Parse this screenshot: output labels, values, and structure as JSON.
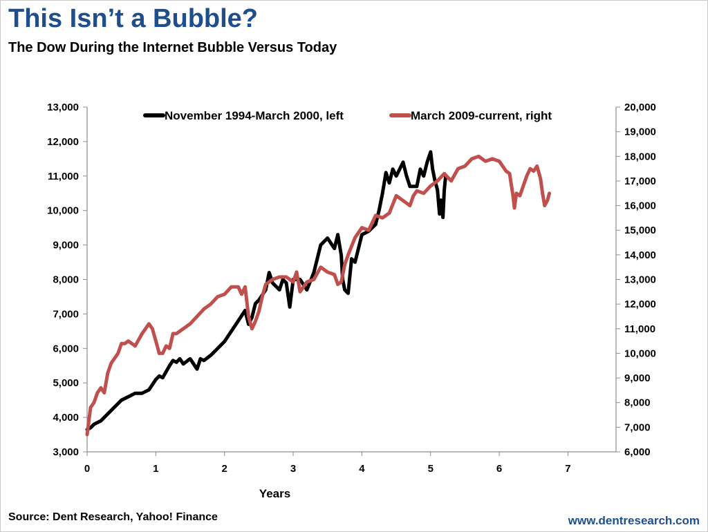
{
  "title": "This Isn’t a Bubble?",
  "subtitle": "The Dow During the Internet Bubble Versus Today",
  "source": "Source: Dent Research, Yahoo! Finance",
  "website": "www.dentresearch.com",
  "colors": {
    "title": "#1f4e8c",
    "series_left": "#000000",
    "series_right": "#c0504d",
    "website": "#1f4e8c"
  },
  "chart_data": {
    "type": "line",
    "title": "",
    "xlabel": "Years",
    "ylabel_left": "",
    "ylabel_right": "",
    "xlim": [
      0,
      7.7
    ],
    "ylim_left": [
      3000,
      13000
    ],
    "ylim_right": [
      6000,
      20000
    ],
    "x_ticks": [
      "0",
      "1",
      "2",
      "3",
      "4",
      "5",
      "6",
      "7"
    ],
    "y_ticks_left": [
      "3,000",
      "4,000",
      "5,000",
      "6,000",
      "7,000",
      "8,000",
      "9,000",
      "10,000",
      "11,000",
      "12,000",
      "13,000"
    ],
    "y_ticks_right": [
      "6,000",
      "7,000",
      "8,000",
      "9,000",
      "10,000",
      "11,000",
      "12,000",
      "13,000",
      "14,000",
      "15,000",
      "16,000",
      "17,000",
      "18,000",
      "19,000",
      "20,000"
    ],
    "grid": false,
    "legend_position": "top",
    "series": [
      {
        "name": "November 1994-March 2000, left",
        "axis": "left",
        "color": "#000000",
        "x": [
          0,
          0.05,
          0.1,
          0.2,
          0.3,
          0.4,
          0.5,
          0.6,
          0.7,
          0.8,
          0.9,
          1.0,
          1.05,
          1.1,
          1.2,
          1.25,
          1.3,
          1.35,
          1.4,
          1.5,
          1.6,
          1.65,
          1.7,
          1.8,
          1.9,
          2.0,
          2.1,
          2.2,
          2.3,
          2.35,
          2.4,
          2.45,
          2.5,
          2.6,
          2.65,
          2.7,
          2.8,
          2.85,
          2.9,
          2.95,
          3.0,
          3.1,
          3.2,
          3.3,
          3.4,
          3.5,
          3.6,
          3.65,
          3.7,
          3.72,
          3.75,
          3.8,
          3.85,
          3.9,
          4.0,
          4.1,
          4.2,
          4.25,
          4.3,
          4.35,
          4.4,
          4.45,
          4.5,
          4.6,
          4.65,
          4.7,
          4.8,
          4.85,
          4.9,
          4.95,
          5.0,
          5.03,
          5.06,
          5.1,
          5.13,
          5.15,
          5.18,
          5.2,
          5.22
        ],
        "y": [
          3650,
          3700,
          3800,
          3900,
          4100,
          4300,
          4500,
          4600,
          4700,
          4700,
          4800,
          5100,
          5200,
          5150,
          5500,
          5650,
          5600,
          5700,
          5550,
          5700,
          5400,
          5700,
          5650,
          5800,
          6000,
          6200,
          6500,
          6800,
          7100,
          6700,
          6900,
          7300,
          7400,
          7700,
          8200,
          7900,
          7700,
          8000,
          7900,
          7200,
          8000,
          8000,
          7700,
          8200,
          9000,
          9200,
          8900,
          9300,
          8700,
          8000,
          7700,
          7600,
          8600,
          8500,
          9300,
          9400,
          9600,
          10000,
          10500,
          11100,
          10800,
          11200,
          11000,
          11400,
          11000,
          10700,
          10700,
          11200,
          11000,
          11400,
          11700,
          11200,
          10900,
          10600,
          9900,
          10300,
          9800,
          10600,
          11000
        ]
      },
      {
        "name": "March 2009-current, right",
        "axis": "right",
        "color": "#c0504d",
        "x": [
          0,
          0.05,
          0.1,
          0.15,
          0.2,
          0.25,
          0.3,
          0.35,
          0.4,
          0.45,
          0.5,
          0.55,
          0.6,
          0.7,
          0.8,
          0.9,
          0.95,
          1.0,
          1.05,
          1.1,
          1.15,
          1.2,
          1.25,
          1.3,
          1.4,
          1.5,
          1.6,
          1.7,
          1.8,
          1.9,
          2.0,
          2.1,
          2.2,
          2.25,
          2.3,
          2.35,
          2.4,
          2.45,
          2.5,
          2.55,
          2.6,
          2.7,
          2.8,
          2.9,
          3.0,
          3.05,
          3.1,
          3.2,
          3.3,
          3.4,
          3.5,
          3.6,
          3.65,
          3.7,
          3.75,
          3.8,
          3.9,
          4.0,
          4.1,
          4.2,
          4.3,
          4.4,
          4.5,
          4.6,
          4.7,
          4.75,
          4.8,
          4.9,
          5.0,
          5.1,
          5.2,
          5.3,
          5.4,
          5.5,
          5.6,
          5.7,
          5.8,
          5.9,
          6.0,
          6.1,
          6.15,
          6.2,
          6.22,
          6.25,
          6.3,
          6.4,
          6.45,
          6.5,
          6.55,
          6.6,
          6.63,
          6.66,
          6.7,
          6.73
        ],
        "y": [
          6700,
          7800,
          8000,
          8400,
          8600,
          8400,
          9200,
          9600,
          9800,
          10000,
          10400,
          10400,
          10500,
          10300,
          10800,
          11200,
          11000,
          10500,
          10000,
          10000,
          10300,
          10200,
          10800,
          10800,
          11000,
          11200,
          11500,
          11800,
          12000,
          12300,
          12400,
          12700,
          12700,
          12400,
          12700,
          11500,
          11000,
          11300,
          11700,
          12300,
          12800,
          13000,
          13100,
          13100,
          12900,
          13300,
          12500,
          12900,
          13000,
          13500,
          13300,
          13200,
          12800,
          12900,
          13600,
          14000,
          14700,
          15100,
          15000,
          15600,
          15500,
          15700,
          16400,
          16200,
          16000,
          16400,
          16600,
          16500,
          16800,
          17000,
          17300,
          17000,
          17500,
          17600,
          17900,
          18000,
          17800,
          17900,
          17800,
          17400,
          17300,
          16400,
          15900,
          16500,
          16400,
          17200,
          17500,
          17400,
          17600,
          17100,
          16500,
          16000,
          16200,
          16500
        ]
      }
    ]
  }
}
